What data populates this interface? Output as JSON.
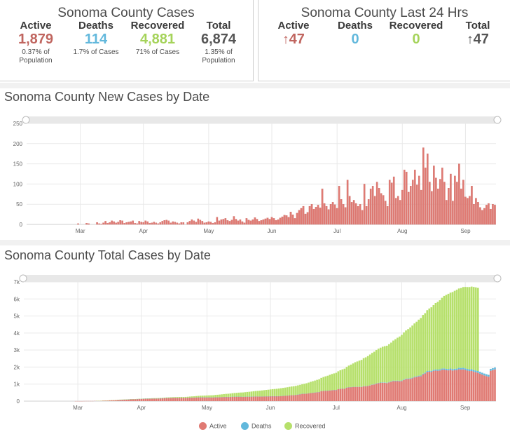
{
  "summary": {
    "title": "Sonoma County Cases",
    "active_label": "Active",
    "active_value": "1,879",
    "active_sub1": "0.37% of",
    "active_sub2": "Population",
    "deaths_label": "Deaths",
    "deaths_value": "114",
    "deaths_sub": "1.7% of Cases",
    "recovered_label": "Recovered",
    "recovered_value": "4,881",
    "recovered_sub": "71% of Cases",
    "total_label": "Total",
    "total_value": "6,874",
    "total_sub1": "1.35% of",
    "total_sub2": "Population"
  },
  "last24": {
    "title": "Sonoma County Last 24 Hrs",
    "active_label": "Active",
    "active_arrow": "↑",
    "active_value": "47",
    "deaths_label": "Deaths",
    "deaths_value": "0",
    "recovered_label": "Recovered",
    "recovered_value": "0",
    "total_label": "Total",
    "total_arrow": "↑",
    "total_value": "47"
  },
  "colors": {
    "active": "#e07a73",
    "deaths": "#62b8dc",
    "recovered": "#b6e06b",
    "total": "#555555"
  },
  "chart_data": [
    {
      "type": "bar",
      "title": "Sonoma County New Cases by Date",
      "x_ticks": [
        "Mar",
        "Apr",
        "May",
        "Jun",
        "Jul",
        "Aug",
        "Sep"
      ],
      "y_ticks": [
        "0",
        "50",
        "100",
        "150",
        "200",
        "250"
      ],
      "ylim": [
        0,
        250
      ],
      "grid": true,
      "series": [
        {
          "values": [
            0,
            0,
            0,
            0,
            0,
            0,
            0,
            0,
            0,
            0,
            0,
            0,
            0,
            0,
            0,
            0,
            0,
            0,
            0,
            0,
            0,
            0,
            0,
            0,
            2,
            0,
            0,
            0,
            3,
            2,
            0,
            0,
            0,
            5,
            2,
            1,
            4,
            8,
            3,
            5,
            9,
            7,
            4,
            6,
            10,
            9,
            3,
            5,
            6,
            7,
            9,
            3,
            2,
            8,
            6,
            5,
            9,
            7,
            3,
            4,
            6,
            4,
            2,
            5,
            8,
            10,
            11,
            9,
            4,
            7,
            6,
            4,
            2,
            5,
            5,
            0,
            5,
            8,
            12,
            9,
            6,
            14,
            11,
            8,
            4,
            5,
            7,
            6,
            3,
            5,
            18,
            9,
            12,
            13,
            15,
            10,
            8,
            11,
            20,
            13,
            9,
            12,
            7,
            4,
            15,
            11,
            9,
            12,
            17,
            13,
            8,
            10,
            12,
            14,
            16,
            13,
            18,
            15,
            10,
            12,
            16,
            19,
            23,
            22,
            18,
            31,
            24,
            15,
            28,
            35,
            40,
            45,
            26,
            30,
            45,
            50,
            38,
            43,
            48,
            41,
            88,
            52,
            45,
            37,
            50,
            55,
            49,
            40,
            95,
            62,
            50,
            42,
            110,
            70,
            55,
            60,
            52,
            45,
            50,
            35,
            100,
            45,
            62,
            88,
            95,
            70,
            105,
            90,
            77,
            72,
            58,
            45,
            110,
            103,
            118,
            65,
            70,
            60,
            85,
            135,
            130,
            80,
            95,
            110,
            135,
            98,
            120,
            85,
            190,
            140,
            175,
            105,
            82,
            145,
            115,
            88,
            112,
            140,
            105,
            60,
            90,
            125,
            58,
            120,
            105,
            150,
            88,
            110,
            68,
            65,
            70,
            95,
            50,
            65,
            55,
            42,
            35,
            40,
            48,
            52,
            38,
            50,
            48
          ]
        }
      ]
    },
    {
      "type": "area",
      "title": "Sonoma County Total Cases by Date",
      "x_ticks": [
        "Mar",
        "Apr",
        "May",
        "Jun",
        "Jul",
        "Aug",
        "Sep"
      ],
      "y_ticks": [
        "0",
        "1k",
        "2k",
        "3k",
        "4k",
        "5k",
        "6k",
        "7k"
      ],
      "ylim": [
        0,
        7000
      ],
      "grid": true,
      "legend_position": "bottom",
      "series": [
        {
          "name": "Active",
          "values": [
            0,
            0,
            0,
            0,
            0,
            0,
            0,
            0,
            0,
            0,
            0,
            0,
            0,
            0,
            0,
            0,
            0,
            0,
            0,
            0,
            0,
            0,
            0,
            0,
            2,
            2,
            2,
            2,
            5,
            7,
            7,
            7,
            7,
            12,
            14,
            15,
            19,
            27,
            30,
            35,
            44,
            51,
            55,
            61,
            71,
            80,
            83,
            88,
            94,
            101,
            110,
            113,
            115,
            123,
            129,
            132,
            140,
            145,
            146,
            148,
            152,
            154,
            153,
            156,
            162,
            170,
            178,
            184,
            186,
            190,
            193,
            194,
            192,
            194,
            195,
            192,
            194,
            198,
            206,
            210,
            210,
            218,
            222,
            224,
            222,
            220,
            222,
            222,
            218,
            216,
            226,
            228,
            232,
            237,
            244,
            246,
            246,
            248,
            258,
            262,
            262,
            264,
            261,
            255,
            260,
            262,
            261,
            264,
            272,
            275,
            273,
            273,
            274,
            277,
            280,
            281,
            287,
            290,
            288,
            288,
            292,
            298,
            308,
            318,
            324,
            343,
            353,
            354,
            366,
            384,
            405,
            429,
            432,
            439,
            458,
            480,
            491,
            505,
            522,
            531,
            586,
            603,
            612,
            613,
            626,
            642,
            652,
            653,
            705,
            724,
            731,
            729,
            792,
            815,
            820,
            832,
            837,
            836,
            839,
            827,
            876,
            872,
            886,
            922,
            962,
            978,
            1026,
            1055,
            1071,
            1082,
            1077,
            1059,
            1101,
            1136,
            1179,
            1172,
            1176,
            1167,
            1181,
            1241,
            1294,
            1297,
            1312,
            1340,
            1396,
            1417,
            1456,
            1459,
            1569,
            1624,
            1715,
            1731,
            1721,
            1776,
            1795,
            1784,
            1798,
            1840,
            1848,
            1817,
            1806,
            1834,
            1799,
            1818,
            1823,
            1871,
            1857,
            1865,
            1831,
            1793,
            1768,
            1770,
            1725,
            1694,
            1662,
            1612,
            1559,
            1509,
            1468,
            1431,
            1784,
            1820,
            1861
          ]
        },
        {
          "name": "Deaths",
          "values": [
            0,
            0,
            0,
            0,
            0,
            0,
            0,
            0,
            0,
            0,
            0,
            0,
            0,
            0,
            0,
            0,
            0,
            0,
            0,
            0,
            0,
            0,
            0,
            0,
            0,
            0,
            0,
            0,
            0,
            0,
            0,
            0,
            0,
            0,
            0,
            0,
            0,
            0,
            0,
            0,
            0,
            0,
            0,
            0,
            1,
            1,
            1,
            1,
            1,
            1,
            1,
            1,
            1,
            1,
            1,
            1,
            1,
            1,
            1,
            1,
            1,
            1,
            1,
            1,
            2,
            2,
            2,
            2,
            2,
            2,
            2,
            2,
            2,
            2,
            2,
            2,
            2,
            2,
            2,
            2,
            2,
            2,
            2,
            2,
            2,
            2,
            2,
            2,
            2,
            2,
            2,
            2,
            2,
            2,
            2,
            2,
            2,
            2,
            2,
            2,
            2,
            2,
            2,
            2,
            2,
            2,
            2,
            2,
            2,
            2,
            2,
            2,
            2,
            2,
            2,
            3,
            3,
            3,
            3,
            3,
            3,
            3,
            3,
            3,
            3,
            3,
            3,
            4,
            4,
            4,
            4,
            4,
            4,
            4,
            4,
            4,
            4,
            4,
            4,
            4,
            4,
            4,
            4,
            4,
            5,
            5,
            5,
            5,
            6,
            6,
            6,
            6,
            6,
            7,
            7,
            7,
            10,
            10,
            10,
            14,
            14,
            14,
            15,
            16,
            18,
            18,
            20,
            20,
            20,
            22,
            22,
            24,
            24,
            25,
            28,
            28,
            30,
            30,
            31,
            31,
            32,
            34,
            35,
            36,
            38,
            40,
            42,
            45,
            48,
            50,
            54,
            56,
            60,
            62,
            65,
            68,
            70,
            72,
            75,
            78,
            80,
            82,
            85,
            86,
            88,
            90,
            92,
            94,
            96,
            98,
            100,
            101,
            102,
            104,
            106,
            108,
            110,
            111,
            112,
            113,
            113,
            114,
            114,
            114,
            114,
            114
          ]
        },
        {
          "name": "Recovered",
          "values": [
            0,
            0,
            0,
            0,
            0,
            0,
            0,
            0,
            0,
            0,
            0,
            0,
            0,
            0,
            0,
            0,
            0,
            0,
            0,
            0,
            0,
            0,
            0,
            0,
            0,
            0,
            0,
            0,
            0,
            0,
            0,
            0,
            0,
            0,
            2,
            4,
            4,
            4,
            5,
            5,
            5,
            5,
            6,
            7,
            7,
            7,
            7,
            7,
            7,
            7,
            7,
            7,
            7,
            7,
            7,
            9,
            10,
            12,
            14,
            16,
            18,
            20,
            23,
            25,
            25,
            26,
            28,
            31,
            33,
            36,
            39,
            42,
            46,
            49,
            51,
            51,
            54,
            58,
            62,
            67,
            73,
            79,
            86,
            92,
            98,
            104,
            109,
            115,
            122,
            129,
            137,
            144,
            152,
            160,
            168,
            178,
            186,
            195,
            205,
            214,
            223,
            233,
            243,
            253,
            263,
            275,
            287,
            298,
            307,
            317,
            329,
            340,
            352,
            364,
            377,
            387,
            398,
            410,
            422,
            434,
            446,
            457,
            467,
            475,
            488,
            494,
            504,
            517,
            526,
            538,
            546,
            561,
            583,
            606,
            627,
            650,
            677,
            700,
            724,
            749,
            775,
            808,
            840,
            876,
            912,
            946,
            971,
            1005,
            1042,
            1085,
            1128,
            1172,
            1209,
            1264,
            1319,
            1374,
            1438,
            1484,
            1531,
            1582,
            1633,
            1686,
            1742,
            1799,
            1852,
            1905,
            1958,
            2004,
            2049,
            2091,
            2128,
            2171,
            2217,
            2277,
            2350,
            2433,
            2518,
            2596,
            2681,
            2761,
            2823,
            2901,
            2980,
            3060,
            3128,
            3207,
            3285,
            3378,
            3445,
            3490,
            3572,
            3652,
            3730,
            3805,
            3905,
            3976,
            4057,
            4157,
            4257,
            4343,
            4418,
            4453,
            4523,
            4576,
            4629,
            4653,
            4692,
            4740,
            4779,
            4808,
            4831,
            4856,
            4876,
            4881,
            4881
          ]
        }
      ]
    }
  ],
  "legend": {
    "active": "Active",
    "deaths": "Deaths",
    "recovered": "Recovered"
  }
}
